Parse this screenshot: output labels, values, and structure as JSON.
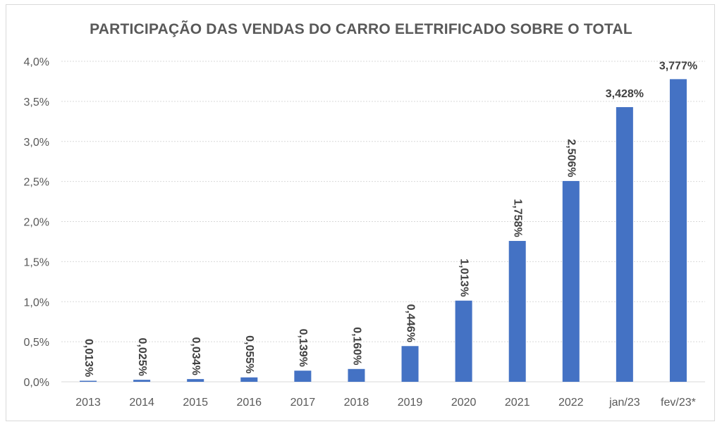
{
  "chart_data": {
    "type": "bar",
    "title": "PARTICIPAÇÃO DAS VENDAS DO CARRO ELETRIFICADO SOBRE O TOTAL",
    "xlabel": "",
    "ylabel": "",
    "categories": [
      "2013",
      "2014",
      "2015",
      "2016",
      "2017",
      "2018",
      "2019",
      "2020",
      "2021",
      "2022",
      "jan/23",
      "fev/23*"
    ],
    "values": [
      0.013,
      0.025,
      0.034,
      0.055,
      0.139,
      0.16,
      0.446,
      1.013,
      1.758,
      2.506,
      3.428,
      3.777
    ],
    "data_labels": [
      "0,013%",
      "0,025%",
      "0,034%",
      "0,055%",
      "0,139%",
      "0,160%",
      "0,446%",
      "1,013%",
      "1,758%",
      "2,506%",
      "3,428%",
      "3,777%"
    ],
    "ylim": [
      0,
      4.0
    ],
    "y_ticks": [
      0,
      0.5,
      1.0,
      1.5,
      2.0,
      2.5,
      3.0,
      3.5,
      4.0
    ],
    "y_tick_labels": [
      "0,0%",
      "0,5%",
      "1,0%",
      "1,5%",
      "2,0%",
      "2,5%",
      "3,0%",
      "3,5%",
      "4,0%"
    ],
    "grid": true,
    "legend": "none",
    "bar_color": "#4472c4",
    "grid_color": "#d9d9d9"
  }
}
